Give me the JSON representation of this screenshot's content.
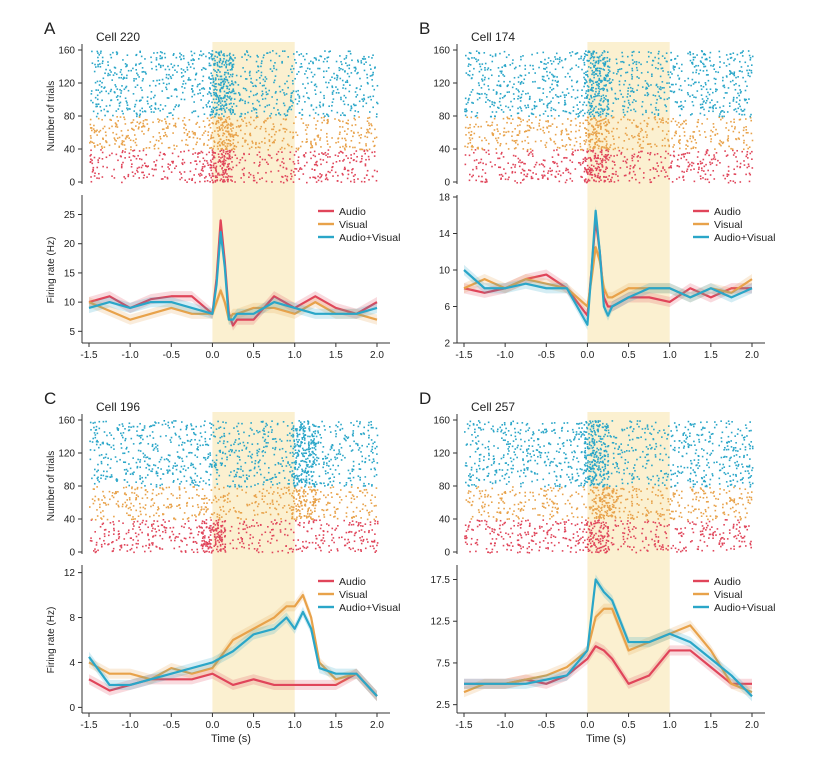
{
  "colors": {
    "audio": "#e0455a",
    "visual": "#e8a24a",
    "audio_visual": "#2aa6c8",
    "stim_window": "#fbf0d0"
  },
  "chart_data": [
    {
      "type": "line",
      "panel_letter": "A",
      "title": "Cell 220",
      "raster_ylabel": "Number of trials",
      "raster_yticks": [
        0,
        40,
        80,
        120,
        160
      ],
      "ylabel": "Firing rate (Hz)",
      "xlabel": "",
      "xticks": [
        "-1.5",
        "-1.0",
        "-0.5",
        "0.0",
        "0.5",
        "1.0",
        "1.5",
        "2.0"
      ],
      "xlim": [
        -1.6,
        2.05
      ],
      "ylim": [
        3,
        28
      ],
      "yticks": [
        5,
        10,
        15,
        20,
        25
      ],
      "stimulus_window": [
        0,
        1
      ],
      "legend": [
        "Audio",
        "Visual",
        "Audio+Visual"
      ],
      "x": [
        -1.5,
        -1.25,
        -1.0,
        -0.75,
        -0.5,
        -0.25,
        0.0,
        0.05,
        0.1,
        0.15,
        0.2,
        0.25,
        0.3,
        0.5,
        0.75,
        1.0,
        1.25,
        1.5,
        1.75,
        2.0
      ],
      "series": [
        {
          "name": "Audio",
          "values": [
            10,
            11,
            9,
            10.5,
            11,
            11,
            8,
            14,
            24,
            17,
            8,
            6,
            7,
            7,
            11,
            9,
            11,
            9,
            8,
            10
          ]
        },
        {
          "name": "Visual",
          "values": [
            10,
            8.5,
            7,
            8,
            9,
            8,
            8,
            10,
            12,
            10,
            7,
            8,
            8,
            9,
            9,
            8,
            10,
            8,
            8,
            7
          ]
        },
        {
          "name": "Audio+Visual",
          "values": [
            9,
            10,
            9,
            10,
            10,
            9,
            8,
            13,
            22,
            16,
            7,
            7,
            8,
            8,
            10,
            9,
            8,
            8,
            8,
            9
          ]
        }
      ]
    },
    {
      "type": "line",
      "panel_letter": "B",
      "title": "Cell 174",
      "raster_ylabel": "",
      "raster_yticks": [
        0,
        40,
        80,
        120,
        160
      ],
      "ylabel": "",
      "xlabel": "",
      "xticks": [
        "-1.5",
        "-1.0",
        "-0.5",
        "0.0",
        "0.5",
        "1.0",
        "1.5",
        "2.0"
      ],
      "xlim": [
        -1.6,
        2.05
      ],
      "ylim": [
        2,
        18
      ],
      "yticks": [
        2,
        6,
        10,
        14,
        18
      ],
      "stimulus_window": [
        0,
        1
      ],
      "legend": [
        "Audio",
        "Visual",
        "Audio+Visual"
      ],
      "x": [
        -1.5,
        -1.25,
        -1.0,
        -0.75,
        -0.5,
        -0.25,
        0.0,
        0.05,
        0.1,
        0.15,
        0.2,
        0.25,
        0.3,
        0.5,
        0.75,
        1.0,
        1.25,
        1.5,
        1.75,
        2.0
      ],
      "series": [
        {
          "name": "Audio",
          "values": [
            8,
            7.5,
            8,
            9,
            9.5,
            8,
            5,
            10,
            15.5,
            12,
            7,
            6,
            6,
            7,
            7,
            6.5,
            8,
            7,
            8,
            8
          ]
        },
        {
          "name": "Visual",
          "values": [
            8,
            9,
            8,
            9,
            8.5,
            8,
            6,
            9,
            12.5,
            11,
            8,
            7,
            7,
            8,
            8,
            8,
            7,
            8,
            7.5,
            9
          ]
        },
        {
          "name": "Audio+Visual",
          "values": [
            10,
            8,
            8,
            8.5,
            8,
            8,
            4,
            10,
            16.5,
            12,
            6,
            5,
            6,
            7,
            8,
            8,
            7,
            8,
            7,
            8
          ]
        }
      ]
    },
    {
      "type": "line",
      "panel_letter": "C",
      "title": "Cell 196",
      "raster_ylabel": "Number of trials",
      "raster_yticks": [
        0,
        40,
        80,
        120,
        160
      ],
      "ylabel": "Firing rate (Hz)",
      "xlabel": "Time (s)",
      "xticks": [
        "-1.5",
        "-1.0",
        "-0.5",
        "0.0",
        "0.5",
        "1.0",
        "1.5",
        "2.0"
      ],
      "xlim": [
        -1.6,
        2.05
      ],
      "ylim": [
        -0.5,
        12.5
      ],
      "yticks": [
        0,
        4,
        8,
        12
      ],
      "stimulus_window": [
        0,
        1
      ],
      "legend": [
        "Audio",
        "Visual",
        "Audio+Visual"
      ],
      "x": [
        -1.5,
        -1.25,
        -1.0,
        -0.75,
        -0.5,
        -0.25,
        0.0,
        0.25,
        0.5,
        0.75,
        0.9,
        1.0,
        1.1,
        1.2,
        1.3,
        1.5,
        1.75,
        2.0
      ],
      "series": [
        {
          "name": "Audio",
          "values": [
            2.5,
            1.5,
            2,
            2.5,
            2.5,
            2.5,
            3,
            2,
            2.5,
            2,
            2,
            2,
            2,
            2,
            2,
            2,
            3,
            1
          ]
        },
        {
          "name": "Visual",
          "values": [
            4,
            3,
            3,
            2.5,
            3.5,
            3,
            3.5,
            6,
            7,
            8,
            9,
            9,
            10,
            8,
            4,
            2.5,
            3,
            1
          ]
        },
        {
          "name": "Audio+Visual",
          "values": [
            4.5,
            2,
            2,
            2.5,
            3,
            3.5,
            4,
            5,
            6.5,
            7,
            8,
            7,
            8.5,
            7,
            3.5,
            3,
            3,
            1
          ]
        }
      ]
    },
    {
      "type": "line",
      "panel_letter": "D",
      "title": "Cell 257",
      "raster_ylabel": "",
      "raster_yticks": [
        0,
        40,
        80,
        120,
        160
      ],
      "ylabel": "",
      "xlabel": "Time (s)",
      "xticks": [
        "-1.5",
        "-1.0",
        "-0.5",
        "0.0",
        "0.5",
        "1.0",
        "1.5",
        "2.0"
      ],
      "xlim": [
        -1.6,
        2.05
      ],
      "ylim": [
        1.5,
        19
      ],
      "yticks": [
        "2.5",
        "7.5",
        "12.5",
        "17.5"
      ],
      "stimulus_window": [
        0,
        1
      ],
      "legend": [
        "Audio",
        "Visual",
        "Audio+Visual"
      ],
      "x": [
        -1.5,
        -1.25,
        -1.0,
        -0.75,
        -0.5,
        -0.25,
        0.0,
        0.1,
        0.2,
        0.3,
        0.5,
        0.75,
        1.0,
        1.25,
        1.5,
        1.75,
        2.0
      ],
      "series": [
        {
          "name": "Audio",
          "values": [
            5,
            5,
            5,
            5.5,
            5,
            6,
            8,
            9.5,
            9,
            8,
            5,
            6,
            9,
            9,
            7,
            5,
            5
          ]
        },
        {
          "name": "Visual",
          "values": [
            4,
            5,
            5,
            5.5,
            6,
            7,
            9,
            13,
            14,
            14,
            9,
            10,
            11,
            12,
            9,
            5,
            4
          ]
        },
        {
          "name": "Audio+Visual",
          "values": [
            5,
            5,
            5,
            5,
            5.5,
            6,
            9,
            17.5,
            16,
            15,
            10,
            10,
            11,
            10,
            8,
            6,
            3.5
          ]
        }
      ]
    }
  ]
}
